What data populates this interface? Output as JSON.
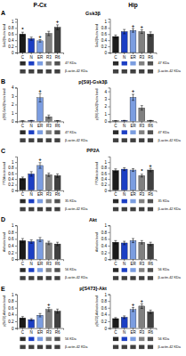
{
  "chart_data": [
    {
      "type": "bar",
      "title": "Gsk3β",
      "subtitle": "P-Cx",
      "ylabel": "Gsk3β/actin band",
      "categories": [
        "C",
        "N",
        "ER",
        "R3",
        "R6"
      ],
      "values": [
        0.6,
        0.45,
        0.38,
        0.62,
        0.82
      ],
      "errors": [
        0.06,
        0.05,
        0.04,
        0.07,
        0.08
      ],
      "colors": [
        "#1a1a1a",
        "#1c3fc4",
        "#7b9de0",
        "#808080",
        "#404040"
      ],
      "ylim": [
        0,
        1.1
      ],
      "yticks": [
        0,
        0.2,
        0.4,
        0.6,
        0.8,
        1
      ],
      "annotations": [
        {
          "text": "A"
        },
        {
          "text": "*",
          "category": "C"
        },
        {
          "text": "+",
          "category": "ER"
        },
        {
          "text": "+",
          "category": "R6"
        },
        {
          "text": "47 KDa",
          "colors": [
            "#2a2a2a",
            "#1c3fc4",
            "#7b9de0",
            "#808080",
            "#505050"
          ]
        },
        {
          "text": "β-actin-42 KDa",
          "colors": [
            "#404040",
            "#404040",
            "#404040",
            "#404040",
            "#404040"
          ]
        }
      ]
    },
    {
      "type": "bar",
      "subtitle": "Hip",
      "ylabel": "Gsk3β/actin band",
      "categories": [
        "C",
        "N",
        "ER",
        "R3",
        "R6"
      ],
      "values": [
        0.52,
        0.68,
        0.72,
        0.68,
        0.6
      ],
      "errors": [
        0.05,
        0.07,
        0.06,
        0.06,
        0.07
      ],
      "colors": [
        "#1a1a1a",
        "#1c3fc4",
        "#7b9de0",
        "#808080",
        "#404040"
      ],
      "ylim": [
        0,
        1.1
      ],
      "yticks": [
        0,
        0.2,
        0.4,
        0.6,
        0.8,
        1
      ],
      "annotations": [
        {
          "text": "+",
          "category": "ER"
        },
        {
          "text": "+",
          "category": "R3"
        },
        {
          "text": "47 KDa",
          "colors": [
            "#2a2a2a",
            "#1c3fc4",
            "#7b9de0",
            "#808080",
            "#505050"
          ]
        },
        {
          "text": "β-actin-42 KDa",
          "colors": [
            "#404040",
            "#404040",
            "#404040",
            "#404040",
            "#404040"
          ]
        }
      ]
    },
    {
      "type": "bar",
      "title": "p[S9]-Gsk3β",
      "ylabel": "p[S9]-Gsk3β/actin band",
      "categories": [
        "C",
        "N",
        "ER",
        "R3",
        "R6"
      ],
      "values": [
        0.05,
        0.1,
        2.8,
        0.55,
        0.08
      ],
      "errors": [
        0.01,
        0.02,
        0.5,
        0.2,
        0.02
      ],
      "colors": [
        "#1a1a1a",
        "#1c3fc4",
        "#7b9de0",
        "#808080",
        "#404040"
      ],
      "ylim": [
        0,
        4
      ],
      "yticks": [
        0,
        1,
        2,
        3,
        4
      ],
      "annotations": [
        {
          "text": "B"
        },
        {
          "text": "+",
          "category": "ER"
        },
        {
          "text": "47 KDa",
          "colors": [
            "#2a2a2a",
            "#1c3fc4",
            "#7b9de0",
            "#808080",
            "#505050"
          ]
        },
        {
          "text": "β-actin-42 KDa",
          "colors": [
            "#404040",
            "#404040",
            "#404040",
            "#404040",
            "#404040"
          ]
        }
      ]
    },
    {
      "type": "bar",
      "ylabel": "p[S9]-Gsk3β/actin band",
      "categories": [
        "C",
        "N",
        "ER",
        "R3",
        "R6"
      ],
      "values": [
        0.08,
        0.12,
        3.2,
        1.8,
        0.12
      ],
      "errors": [
        0.01,
        0.02,
        0.4,
        0.3,
        0.02
      ],
      "colors": [
        "#1a1a1a",
        "#1c3fc4",
        "#7b9de0",
        "#808080",
        "#404040"
      ],
      "ylim": [
        0,
        4.5
      ],
      "yticks": [
        0,
        1,
        2,
        3,
        4
      ],
      "annotations": [
        {
          "text": "+",
          "category": "ER"
        },
        {
          "text": "47 KDa",
          "colors": [
            "#2a2a2a",
            "#1c3fc4",
            "#7b9de0",
            "#808080",
            "#505050"
          ]
        },
        {
          "text": "β-actin-42 KDa",
          "colors": [
            "#404040",
            "#404040",
            "#404040",
            "#404040",
            "#404040"
          ]
        }
      ]
    },
    {
      "type": "bar",
      "title": "PP2A",
      "ylabel": "PP2A/actin band",
      "categories": [
        "C",
        "N",
        "ER",
        "R3",
        "R6"
      ],
      "values": [
        0.42,
        0.58,
        0.88,
        0.55,
        0.52
      ],
      "errors": [
        0.05,
        0.08,
        0.1,
        0.06,
        0.06
      ],
      "colors": [
        "#1a1a1a",
        "#1c3fc4",
        "#7b9de0",
        "#808080",
        "#404040"
      ],
      "ylim": [
        0,
        1.2
      ],
      "yticks": [
        0,
        0.2,
        0.4,
        0.6,
        0.8,
        1
      ],
      "annotations": [
        {
          "text": "C"
        },
        {
          "text": "+",
          "category": "ER"
        },
        {
          "text": "35 KDa",
          "colors": [
            "#2a2a2a",
            "#1c3fc4",
            "#7b9de0",
            "#808080",
            "#505050"
          ]
        },
        {
          "text": "β-actin-42 KDa",
          "colors": [
            "#404040",
            "#404040",
            "#404040",
            "#404040",
            "#404040"
          ]
        }
      ]
    },
    {
      "type": "bar",
      "ylabel": "PP2A/actin band",
      "categories": [
        "C",
        "N",
        "ER",
        "R3",
        "R6"
      ],
      "values": [
        0.7,
        0.75,
        0.72,
        0.52,
        0.72
      ],
      "errors": [
        0.06,
        0.05,
        0.05,
        0.05,
        0.06
      ],
      "colors": [
        "#1a1a1a",
        "#1c3fc4",
        "#7b9de0",
        "#808080",
        "#404040"
      ],
      "ylim": [
        0,
        1.2
      ],
      "yticks": [
        0,
        0.2,
        0.4,
        0.6,
        0.8,
        1
      ],
      "annotations": [
        {
          "text": "*",
          "category": "R3"
        },
        {
          "text": "+",
          "category": "R6"
        },
        {
          "text": "35 KDa",
          "colors": [
            "#2a2a2a",
            "#1c3fc4",
            "#7b9de0",
            "#808080",
            "#505050"
          ]
        },
        {
          "text": "β-actin-42 KDa",
          "colors": [
            "#404040",
            "#404040",
            "#404040",
            "#404040",
            "#404040"
          ]
        }
      ]
    },
    {
      "type": "bar",
      "title": "Akt",
      "ylabel": "Akt/actin band",
      "categories": [
        "C",
        "N",
        "ER",
        "R3",
        "R6"
      ],
      "values": [
        0.55,
        0.52,
        0.58,
        0.48,
        0.45
      ],
      "errors": [
        0.06,
        0.05,
        0.06,
        0.05,
        0.05
      ],
      "colors": [
        "#1a1a1a",
        "#1c3fc4",
        "#7b9de0",
        "#808080",
        "#404040"
      ],
      "ylim": [
        0,
        1
      ],
      "yticks": [
        0,
        0.2,
        0.4,
        0.6,
        0.8,
        1
      ],
      "annotations": [
        {
          "text": "D"
        },
        {
          "text": "56 KDa",
          "colors": [
            "#2a2a2a",
            "#1c3fc4",
            "#7b9de0",
            "#808080",
            "#505050"
          ]
        },
        {
          "text": "β-actin-42 KDa",
          "colors": [
            "#404040",
            "#404040",
            "#404040",
            "#404040",
            "#404040"
          ]
        }
      ]
    },
    {
      "type": "bar",
      "ylabel": "Akt/actin band",
      "categories": [
        "C",
        "N",
        "ER",
        "R3",
        "R6"
      ],
      "values": [
        0.5,
        0.48,
        0.55,
        0.5,
        0.45
      ],
      "errors": [
        0.05,
        0.05,
        0.06,
        0.05,
        0.05
      ],
      "colors": [
        "#1a1a1a",
        "#1c3fc4",
        "#7b9de0",
        "#808080",
        "#404040"
      ],
      "ylim": [
        0,
        1
      ],
      "yticks": [
        0,
        0.2,
        0.4,
        0.6,
        0.8,
        1
      ],
      "annotations": [
        {
          "text": "56 KDa",
          "colors": [
            "#2a2a2a",
            "#1c3fc4",
            "#7b9de0",
            "#808080",
            "#505050"
          ]
        },
        {
          "text": "β-actin-42 KDa",
          "colors": [
            "#404040",
            "#404040",
            "#404040",
            "#404040",
            "#404040"
          ]
        }
      ]
    },
    {
      "type": "bar",
      "title": "p[S473]-Akt",
      "ylabel": "p[S473]-Akt/actin band",
      "categories": [
        "C",
        "N",
        "ER",
        "R3",
        "R6"
      ],
      "values": [
        0.3,
        0.25,
        0.38,
        0.55,
        0.5
      ],
      "errors": [
        0.04,
        0.03,
        0.05,
        0.06,
        0.06
      ],
      "colors": [
        "#1a1a1a",
        "#1c3fc4",
        "#7b9de0",
        "#808080",
        "#404040"
      ],
      "ylim": [
        0,
        1
      ],
      "yticks": [
        0,
        0.2,
        0.4,
        0.6,
        0.8,
        1
      ],
      "annotations": [
        {
          "text": "E"
        },
        {
          "text": "+",
          "category": "R3"
        },
        {
          "text": "56 KDa",
          "colors": [
            "#2a2a2a",
            "#1c3fc4",
            "#7b9de0",
            "#808080",
            "#505050"
          ]
        },
        {
          "text": "β-actin-42 KDa",
          "colors": [
            "#404040",
            "#404040",
            "#404040",
            "#404040",
            "#404040"
          ]
        }
      ]
    },
    {
      "type": "bar",
      "ylabel": "p[S473]-Akt/actin band",
      "categories": [
        "C",
        "N",
        "ER",
        "R3",
        "R6"
      ],
      "values": [
        0.28,
        0.32,
        0.55,
        0.65,
        0.48
      ],
      "errors": [
        0.03,
        0.04,
        0.06,
        0.07,
        0.05
      ],
      "colors": [
        "#1a1a1a",
        "#1c3fc4",
        "#7b9de0",
        "#808080",
        "#404040"
      ],
      "ylim": [
        0,
        1
      ],
      "yticks": [
        0,
        0.2,
        0.4,
        0.6,
        0.8,
        1
      ],
      "annotations": [
        {
          "text": "+",
          "category": "ER"
        },
        {
          "text": "+",
          "category": "R3"
        },
        {
          "text": "56 KDa",
          "colors": [
            "#2a2a2a",
            "#1c3fc4",
            "#7b9de0",
            "#808080",
            "#505050"
          ]
        },
        {
          "text": "β-actin-42 KDa",
          "colors": [
            "#404040",
            "#404040",
            "#404040",
            "#404040",
            "#404040"
          ]
        }
      ]
    }
  ]
}
